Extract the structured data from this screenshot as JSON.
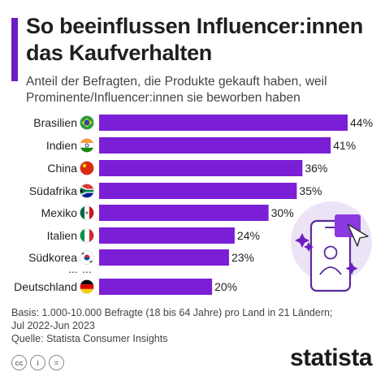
{
  "header": {
    "title": "So beeinflussen Influencer:innen das Kaufverhalten",
    "subtitle": "Anteil der Befragten, die Produkte gekauft haben, weil Prominente/Influencer:innen sie beworben haben"
  },
  "chart_data": {
    "type": "bar",
    "orientation": "horizontal",
    "categories": [
      "Brasilien",
      "Indien",
      "China",
      "Südafrika",
      "Mexiko",
      "Italien",
      "Südkorea",
      "Deutschland"
    ],
    "values": [
      44,
      41,
      36,
      35,
      30,
      24,
      23,
      20
    ],
    "value_labels": [
      "44%",
      "41%",
      "36%",
      "35%",
      "30%",
      "24%",
      "23%",
      "20%"
    ],
    "flag_icons": [
      "flag-brazil-icon",
      "flag-india-icon",
      "flag-china-icon",
      "flag-south-africa-icon",
      "flag-mexico-icon",
      "flag-italy-icon",
      "flag-south-korea-icon",
      "flag-germany-icon"
    ],
    "ellipsis": "...",
    "xlim": [
      0,
      44
    ],
    "bar_color": "#7a1fd6",
    "grid": false
  },
  "footer": {
    "basis_line1": "Basis: 1.000-10.000 Befragte (18 bis 64 Jahre) pro Land in 21 Ländern;",
    "basis_line2": "Jul 2022-Jun 2023",
    "source": "Quelle: Statista Consumer Insights"
  },
  "license_icons": [
    {
      "name": "cc-icon",
      "glyph": "cc"
    },
    {
      "name": "info-icon",
      "glyph": "i"
    },
    {
      "name": "equals-icon",
      "glyph": "="
    }
  ],
  "brand": {
    "name": "statista"
  },
  "colors": {
    "accent": "#6c1fc1",
    "bar": "#7a1fd6",
    "illustration_bg": "#ece4f6"
  }
}
